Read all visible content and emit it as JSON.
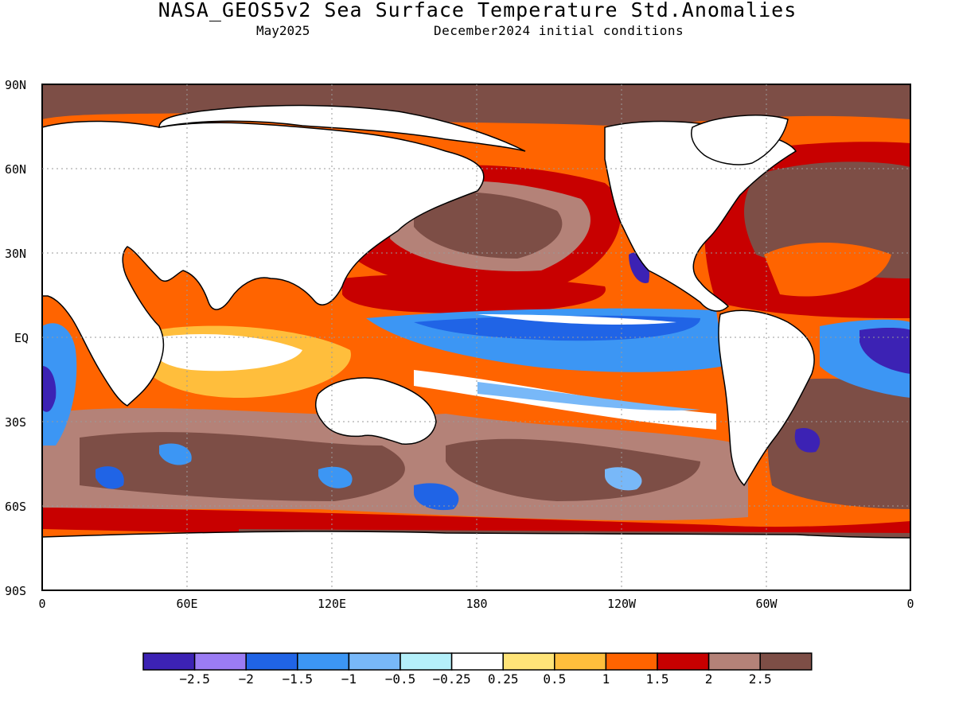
{
  "title": "NASA_GEOS5v2 Sea Surface Temperature Std.Anomalies",
  "subtitle_left": "May2025",
  "subtitle_right": "December2024 initial conditions",
  "lat_labels": [
    "90N",
    "60N",
    "30N",
    "EQ",
    "30S",
    "60S",
    "90S"
  ],
  "lon_labels": [
    "0",
    "60E",
    "120E",
    "180",
    "120W",
    "60W",
    "0"
  ],
  "colorbar": {
    "colors": [
      "#3c22b4",
      "#9b7cf4",
      "#2064e6",
      "#3c96f4",
      "#78b8f8",
      "#b4f0fa",
      "#ffffff",
      "#ffe478",
      "#ffbe3c",
      "#ff6400",
      "#c80000",
      "#b48278",
      "#7d4e46"
    ],
    "tick_labels": [
      "-2.5",
      "-2",
      "-1.5",
      "-1",
      "-0.5",
      "-0.25",
      "0.25",
      "0.5",
      "1",
      "1.5",
      "2",
      "2.5"
    ]
  },
  "colors": {
    "land": "#ffffff",
    "sea_ice": "#7d4e46",
    "coast": "#000000"
  }
}
